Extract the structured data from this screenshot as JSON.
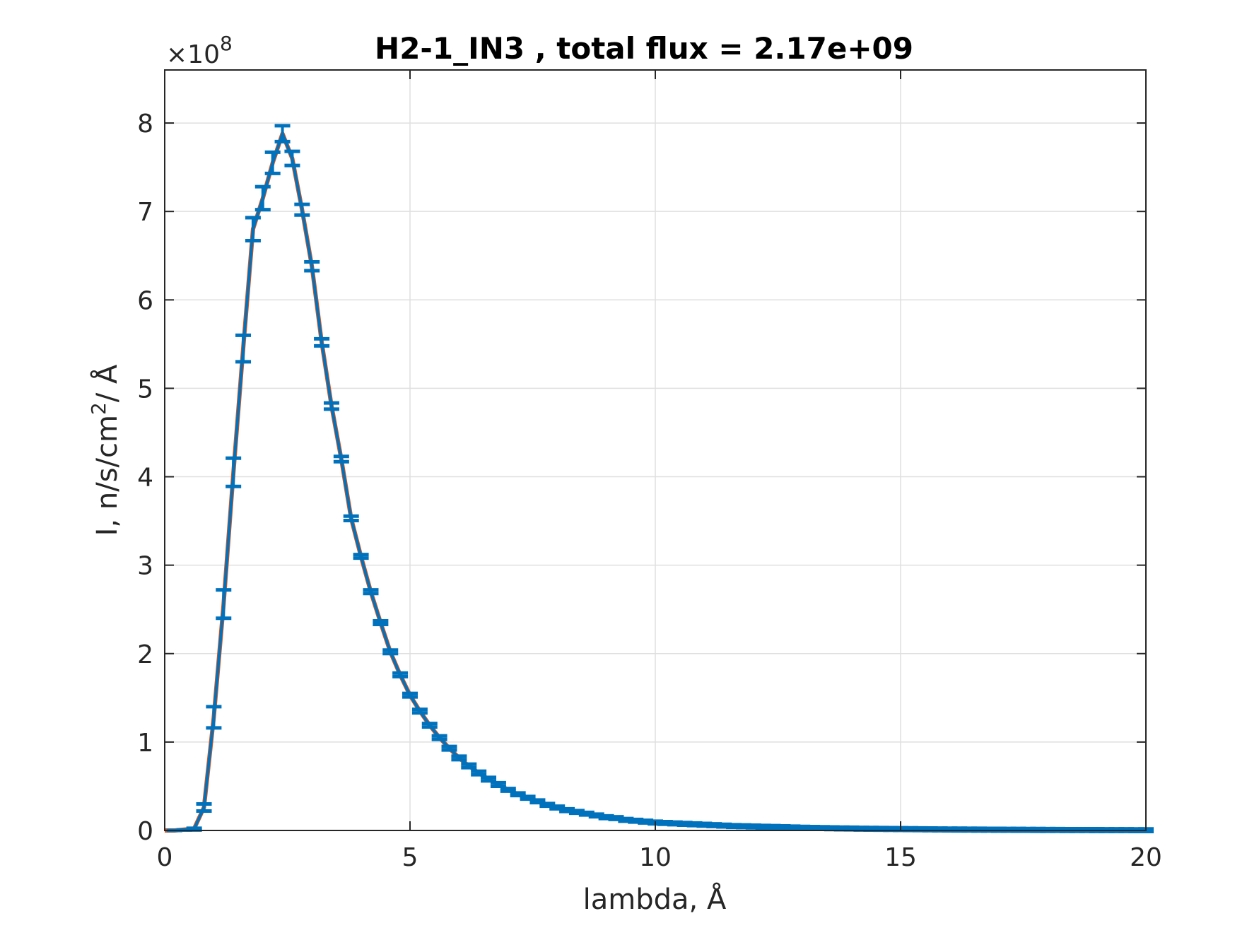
{
  "chart_data": {
    "type": "line",
    "title": "H2-1_IN3 , total flux =  2.17e+09",
    "xlabel": "lambda,  Å",
    "ylabel_main": "I, n/s/cm",
    "ylabel_sup": "2",
    "ylabel_tail": "/ Å",
    "y_exponent_prefix": "×10",
    "y_exponent_power": "8",
    "xlim": [
      0,
      20
    ],
    "ylim": [
      0,
      8.6
    ],
    "xticks": [
      0,
      5,
      10,
      15,
      20
    ],
    "xtick_labels": [
      "0",
      "5",
      "10",
      "15",
      "20"
    ],
    "yticks": [
      0,
      1,
      2,
      3,
      4,
      5,
      6,
      7,
      8
    ],
    "ytick_labels": [
      "0",
      "1",
      "2",
      "3",
      "4",
      "5",
      "6",
      "7",
      "8"
    ],
    "grid": true,
    "colors": {
      "curve": "#D95319",
      "errorbar": "#0072BD",
      "grid": "#DFDFDF",
      "axis": "#262626"
    },
    "series": [
      {
        "kind": "line",
        "x": [
          0,
          0.2,
          0.4,
          0.6,
          0.8,
          1.0,
          1.2,
          1.4,
          1.6,
          1.8,
          2.0,
          2.2,
          2.4,
          2.6,
          2.8,
          3.0,
          3.2,
          3.4,
          3.6,
          3.8,
          4.0,
          4.2,
          4.4,
          4.6,
          4.8,
          5.0,
          5.2,
          5.4,
          5.6,
          5.8,
          6.0,
          6.2,
          6.4,
          6.6,
          6.8,
          7.0,
          7.2,
          7.4,
          7.6,
          7.8,
          8.0,
          8.2,
          8.4,
          8.6,
          8.8,
          9.0,
          9.2,
          9.4,
          9.6,
          9.8,
          10.0,
          10.5,
          11.0,
          11.5,
          12.0,
          12.5,
          13.0,
          13.5,
          14.0,
          15.0,
          16.0,
          17.0,
          18.0,
          19.0,
          20.0
        ],
        "y": [
          0,
          0,
          0.01,
          0.02,
          0.26,
          1.28,
          2.56,
          4.05,
          5.45,
          6.8,
          7.15,
          7.55,
          7.88,
          7.6,
          7.02,
          6.38,
          5.52,
          4.8,
          4.2,
          3.53,
          3.1,
          2.7,
          2.35,
          2.02,
          1.76,
          1.53,
          1.35,
          1.19,
          1.05,
          0.93,
          0.82,
          0.73,
          0.65,
          0.58,
          0.52,
          0.46,
          0.41,
          0.37,
          0.33,
          0.29,
          0.26,
          0.23,
          0.21,
          0.19,
          0.17,
          0.15,
          0.14,
          0.12,
          0.11,
          0.1,
          0.09,
          0.075,
          0.065,
          0.055,
          0.045,
          0.037,
          0.03,
          0.025,
          0.02,
          0.015,
          0.011,
          0.008,
          0.006,
          0.004,
          0.003
        ]
      },
      {
        "kind": "errorbar",
        "x": [
          0.2,
          0.4,
          0.6,
          0.8,
          1.0,
          1.2,
          1.4,
          1.6,
          1.8,
          2.0,
          2.2,
          2.4,
          2.6,
          2.8,
          3.0,
          3.2,
          3.4,
          3.6,
          3.8,
          4.0,
          4.2,
          4.4,
          4.6,
          4.8,
          5.0,
          5.2,
          5.4,
          5.6,
          5.8,
          6.0,
          6.2,
          6.4,
          6.6,
          6.8,
          7.0,
          7.2,
          7.4,
          7.6,
          7.8,
          8.0,
          8.2,
          8.4,
          8.6,
          8.8,
          9.0,
          9.2,
          9.4,
          9.6,
          9.8,
          10.0,
          10.2,
          10.4,
          10.6,
          10.8,
          11.0,
          11.2,
          11.4,
          11.6,
          11.8,
          12.0,
          12.2,
          12.4,
          12.6,
          12.8,
          13.0,
          13.2,
          13.4,
          13.6,
          13.8,
          14.0,
          14.2,
          14.4,
          14.6,
          14.8,
          15.0,
          15.2,
          15.4,
          15.6,
          15.8,
          16.0,
          16.2,
          16.4,
          16.6,
          16.8,
          17.0,
          17.2,
          17.4,
          17.6,
          17.8,
          18.0,
          18.2,
          18.4,
          18.6,
          18.8,
          19.0,
          19.2,
          19.4,
          19.6,
          19.8,
          20.0
        ],
        "y": [
          0,
          0.005,
          0.015,
          0.26,
          1.28,
          2.56,
          4.05,
          5.45,
          6.8,
          7.15,
          7.55,
          7.88,
          7.6,
          7.02,
          6.38,
          5.52,
          4.8,
          4.2,
          3.53,
          3.1,
          2.7,
          2.35,
          2.02,
          1.76,
          1.53,
          1.35,
          1.19,
          1.05,
          0.93,
          0.82,
          0.73,
          0.65,
          0.58,
          0.52,
          0.46,
          0.41,
          0.37,
          0.33,
          0.29,
          0.26,
          0.23,
          0.21,
          0.19,
          0.17,
          0.15,
          0.14,
          0.12,
          0.11,
          0.1,
          0.09,
          0.085,
          0.08,
          0.075,
          0.07,
          0.065,
          0.06,
          0.055,
          0.05,
          0.048,
          0.045,
          0.042,
          0.04,
          0.037,
          0.034,
          0.031,
          0.029,
          0.027,
          0.025,
          0.023,
          0.022,
          0.02,
          0.019,
          0.018,
          0.017,
          0.016,
          0.015,
          0.014,
          0.013,
          0.012,
          0.011,
          0.0105,
          0.01,
          0.0095,
          0.009,
          0.0085,
          0.008,
          0.0075,
          0.007,
          0.0065,
          0.006,
          0.0057,
          0.0054,
          0.0051,
          0.0048,
          0.0045,
          0.0042,
          0.004,
          0.0037,
          0.0034,
          0.003
        ],
        "err": [
          0,
          0,
          0.01,
          0.04,
          0.12,
          0.16,
          0.16,
          0.15,
          0.13,
          0.13,
          0.12,
          0.09,
          0.08,
          0.06,
          0.05,
          0.04,
          0.035,
          0.03,
          0.025,
          0.02,
          0.02,
          0.02,
          0.02,
          0.02,
          0.02,
          0.02,
          0.02,
          0.02,
          0.02,
          0.02,
          0.02,
          0.02,
          0.02,
          0.02,
          0.015,
          0.015,
          0.015,
          0.015,
          0.015,
          0.015,
          0.015,
          0.015,
          0.015,
          0.015,
          0.015,
          0.015,
          0.015,
          0.015,
          0.015,
          0.015,
          0.015,
          0.015,
          0.015,
          0.015,
          0.015,
          0.015,
          0.015,
          0.015,
          0.015,
          0.015,
          0.015,
          0.015,
          0.015,
          0.015,
          0.015,
          0.015,
          0.015,
          0.015,
          0.015,
          0.015,
          0.015,
          0.015,
          0.015,
          0.015,
          0.015,
          0.015,
          0.015,
          0.015,
          0.015,
          0.015,
          0.015,
          0.015,
          0.015,
          0.015,
          0.015,
          0.015,
          0.015,
          0.015,
          0.015,
          0.015,
          0.015,
          0.015,
          0.015,
          0.015,
          0.015,
          0.015,
          0.015,
          0.015,
          0.015,
          0.015
        ]
      }
    ]
  }
}
